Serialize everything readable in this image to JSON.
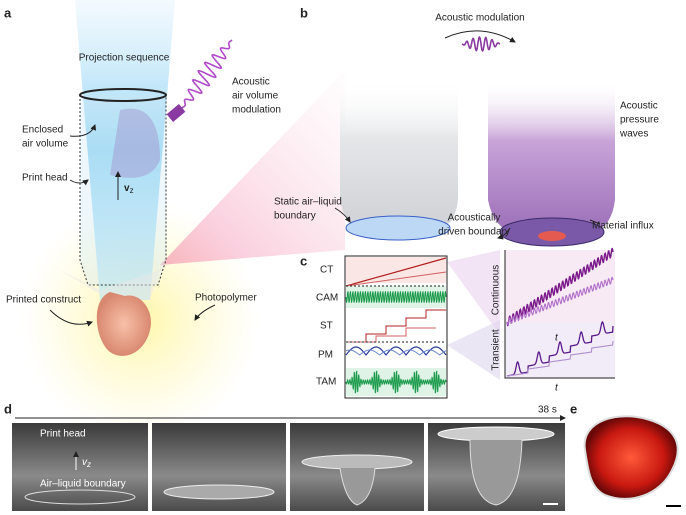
{
  "panel_a": {
    "label": "a",
    "projection": "Projection sequence",
    "acoustic": [
      "Acoustic",
      "air volume",
      "modulation"
    ],
    "enclosed": [
      "Enclosed",
      "air volume"
    ],
    "print_head": "Print head",
    "velocity": {
      "symbol": "v",
      "subscript": "z"
    },
    "construct": "Printed construct",
    "photopolymer": "Photopolymer"
  },
  "panel_b": {
    "label": "b",
    "modulation": "Acoustic modulation",
    "waves": [
      "Acoustic",
      "pressure",
      "waves"
    ],
    "static": [
      "Static air–liquid",
      "boundary"
    ],
    "driven": [
      "Acoustically",
      "driven boundary"
    ],
    "influx": "Material influx"
  },
  "panel_c": {
    "label": "c",
    "rows": [
      "CT",
      "CAM",
      "ST",
      "PM",
      "TAM"
    ],
    "continuous": "Continuous",
    "transient": "Transient",
    "time_axis": "t"
  },
  "panel_d": {
    "label": "d",
    "duration": "38 s",
    "print_head": "Print head",
    "velocity": {
      "symbol": "v",
      "subscript": "z"
    },
    "boundary": "Air–liquid boundary"
  },
  "panel_e": {
    "label": "e"
  }
}
